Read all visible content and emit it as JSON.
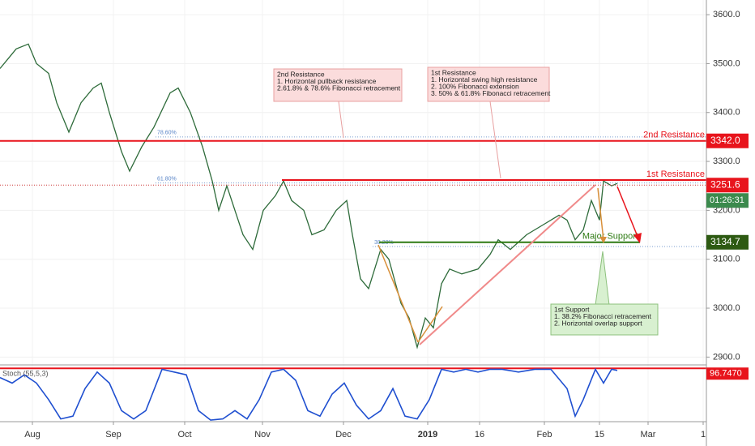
{
  "chart_data": {
    "type": "line",
    "x": [
      0,
      2.5,
      5,
      8.75,
      11.25,
      15,
      17.5,
      21.25,
      25,
      28.75,
      31.25,
      33.75,
      37.5,
      40,
      43.75,
      47.5,
      52.5,
      55,
      58.75,
      62.5,
      65.5,
      67.5,
      70,
      72.5,
      75,
      78,
      81.25,
      85,
      87.5,
      90,
      93.75,
      96.25,
      100,
      103.75,
      107,
      108.75,
      111.25,
      113.75,
      117.5,
      120,
      123.75,
      126.25,
      128.75,
      131.25,
      133.75,
      136.25,
      138.75,
      142.5,
      147.5,
      151.25,
      153.75,
      157.5,
      162.5,
      167.5,
      172.5,
      175,
      177.5,
      180,
      182.5,
      185,
      186.25,
      188.75,
      190.5
    ],
    "values": [
      3490,
      3510,
      3530,
      3540,
      3500,
      3480,
      3420,
      3360,
      3420,
      3450,
      3460,
      3400,
      3320,
      3280,
      3330,
      3370,
      3440,
      3450,
      3400,
      3330,
      3260,
      3200,
      3250,
      3200,
      3150,
      3120,
      3200,
      3230,
      3260,
      3220,
      3200,
      3150,
      3160,
      3200,
      3220,
      3150,
      3060,
      3040,
      3120,
      3100,
      3010,
      2980,
      2920,
      2980,
      2960,
      3050,
      3080,
      3070,
      3080,
      3110,
      3140,
      3120,
      3150,
      3170,
      3190,
      3180,
      3140,
      3160,
      3220,
      3180,
      3260,
      3250,
      3255
    ],
    "color": "#2e6b3a",
    "xlim": [
      0,
      218
    ],
    "xticks": [
      {
        "value": 10,
        "label": "Aug"
      },
      {
        "value": 35,
        "label": "Sep"
      },
      {
        "value": 57,
        "label": "Oct"
      },
      {
        "value": 81,
        "label": "Nov"
      },
      {
        "value": 106,
        "label": "Dec"
      },
      {
        "value": 132,
        "label": "2019"
      },
      {
        "value": 148,
        "label": "16"
      },
      {
        "value": 168,
        "label": "Feb"
      },
      {
        "value": 185,
        "label": "15"
      },
      {
        "value": 200,
        "label": "Mar"
      },
      {
        "value": 217,
        "label": "1"
      }
    ],
    "ylim": [
      2884,
      3630
    ],
    "yticks": [
      {
        "value": 2900,
        "label": "2900.0"
      },
      {
        "value": 3000,
        "label": "3000.0"
      },
      {
        "value": 3100,
        "label": "3100.0"
      },
      {
        "value": 3200,
        "label": "3200.0"
      },
      {
        "value": 3300,
        "label": "3300.0"
      },
      {
        "value": 3400,
        "label": "3400.0"
      },
      {
        "value": 3500,
        "label": "3500.0"
      },
      {
        "value": 3600,
        "label": "3600.0"
      }
    ],
    "levels": [
      {
        "name": "2nd Resistance",
        "value": 3342,
        "label": "3342.0",
        "x": [
          0,
          218
        ],
        "color": "#e8141c"
      },
      {
        "name": "1st Resistance",
        "value": 3262,
        "x": [
          87,
          218
        ],
        "color": "#e8141c"
      },
      {
        "name": "Major Support",
        "value": 3134.7,
        "x": [
          117,
          197.5
        ],
        "color": "#2d7a12"
      }
    ],
    "fib_levels": [
      {
        "label": "78.60%",
        "value": 3350,
        "x": [
          48,
          218
        ]
      },
      {
        "label": "61.80%",
        "value": 3256,
        "x": [
          48,
          218
        ]
      },
      {
        "label": "38.20%",
        "value": 3126,
        "x": [
          115,
          218
        ]
      }
    ],
    "current_price": 3251.6,
    "countdown": "01:26:31",
    "annotations": [
      {
        "lines": [
          "2nd Resistance",
          "1. Horizontal pullback resistance",
          "2.61.8% & 78.6% Fibonacci retracement"
        ]
      },
      {
        "lines": [
          "1st Resistance",
          "1. Horizontal swing high resistance",
          "2. 100% Fibonacci extension",
          "3. 50% & 61.8% Fibonacci retracement"
        ]
      },
      {
        "lines": [
          "1st Support",
          "1. 38.2% Fibonacci retracement",
          "2. Horizontal overlap support"
        ]
      }
    ],
    "stoch": {
      "name": "Stoch (55,5,3)",
      "color": "#1f4fd0",
      "ylim": [
        0,
        100
      ],
      "x": [
        0,
        3.75,
        7.5,
        11.25,
        15,
        18.75,
        22.5,
        26.25,
        30,
        33.75,
        37.5,
        41.25,
        45,
        50,
        53.75,
        57.5,
        61.25,
        65,
        68.75,
        72.5,
        76.25,
        80,
        83.75,
        87.5,
        91.25,
        95,
        98.75,
        102.5,
        106.25,
        110,
        113.75,
        117.5,
        121.25,
        125,
        128.75,
        132.5,
        136.25,
        140,
        143.75,
        147.5,
        151.25,
        155,
        160,
        165,
        170,
        175,
        177.5,
        180,
        183.75,
        186.25,
        188.75,
        190.5
      ],
      "values": [
        80,
        70,
        85,
        70,
        40,
        5,
        10,
        60,
        90,
        70,
        20,
        5,
        20,
        95,
        90,
        85,
        20,
        3,
        5,
        20,
        5,
        40,
        90,
        95,
        75,
        20,
        10,
        50,
        70,
        30,
        5,
        20,
        60,
        10,
        5,
        40,
        95,
        90,
        95,
        90,
        95,
        95,
        90,
        95,
        95,
        60,
        10,
        40,
        95,
        70,
        95,
        93
      ],
      "level": 96.747,
      "level_label": "96.7470"
    }
  }
}
